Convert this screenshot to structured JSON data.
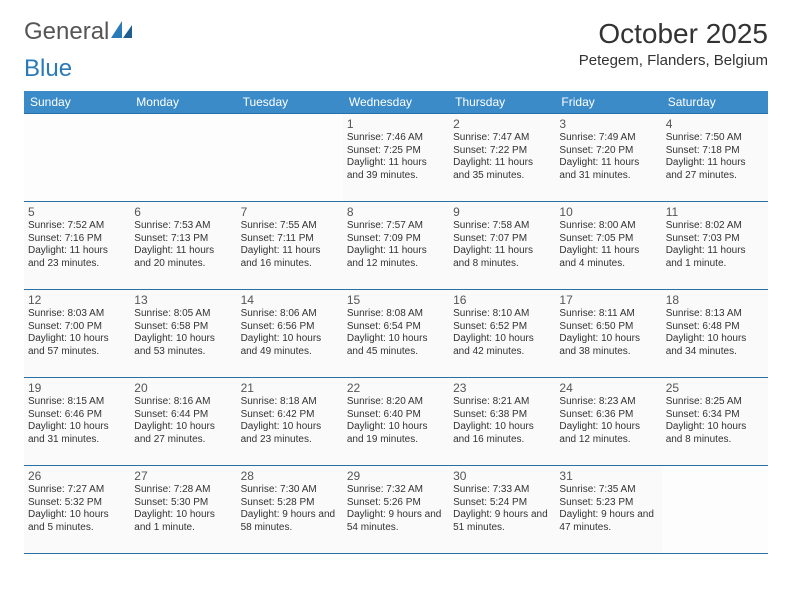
{
  "brand": {
    "part1": "General",
    "part2": "Blue"
  },
  "title": "October 2025",
  "location": "Petegem, Flanders, Belgium",
  "colors": {
    "header_bg": "#3b8bc9",
    "header_text": "#ffffff",
    "rule": "#2a6fa3",
    "brand_gray": "#555555",
    "brand_blue": "#2a7ab8"
  },
  "dayHeaders": [
    "Sunday",
    "Monday",
    "Tuesday",
    "Wednesday",
    "Thursday",
    "Friday",
    "Saturday"
  ],
  "weeks": [
    [
      null,
      null,
      null,
      {
        "n": "1",
        "sr": "Sunrise: 7:46 AM",
        "ss": "Sunset: 7:25 PM",
        "dl": "Daylight: 11 hours and 39 minutes."
      },
      {
        "n": "2",
        "sr": "Sunrise: 7:47 AM",
        "ss": "Sunset: 7:22 PM",
        "dl": "Daylight: 11 hours and 35 minutes."
      },
      {
        "n": "3",
        "sr": "Sunrise: 7:49 AM",
        "ss": "Sunset: 7:20 PM",
        "dl": "Daylight: 11 hours and 31 minutes."
      },
      {
        "n": "4",
        "sr": "Sunrise: 7:50 AM",
        "ss": "Sunset: 7:18 PM",
        "dl": "Daylight: 11 hours and 27 minutes."
      }
    ],
    [
      {
        "n": "5",
        "sr": "Sunrise: 7:52 AM",
        "ss": "Sunset: 7:16 PM",
        "dl": "Daylight: 11 hours and 23 minutes."
      },
      {
        "n": "6",
        "sr": "Sunrise: 7:53 AM",
        "ss": "Sunset: 7:13 PM",
        "dl": "Daylight: 11 hours and 20 minutes."
      },
      {
        "n": "7",
        "sr": "Sunrise: 7:55 AM",
        "ss": "Sunset: 7:11 PM",
        "dl": "Daylight: 11 hours and 16 minutes."
      },
      {
        "n": "8",
        "sr": "Sunrise: 7:57 AM",
        "ss": "Sunset: 7:09 PM",
        "dl": "Daylight: 11 hours and 12 minutes."
      },
      {
        "n": "9",
        "sr": "Sunrise: 7:58 AM",
        "ss": "Sunset: 7:07 PM",
        "dl": "Daylight: 11 hours and 8 minutes."
      },
      {
        "n": "10",
        "sr": "Sunrise: 8:00 AM",
        "ss": "Sunset: 7:05 PM",
        "dl": "Daylight: 11 hours and 4 minutes."
      },
      {
        "n": "11",
        "sr": "Sunrise: 8:02 AM",
        "ss": "Sunset: 7:03 PM",
        "dl": "Daylight: 11 hours and 1 minute."
      }
    ],
    [
      {
        "n": "12",
        "sr": "Sunrise: 8:03 AM",
        "ss": "Sunset: 7:00 PM",
        "dl": "Daylight: 10 hours and 57 minutes."
      },
      {
        "n": "13",
        "sr": "Sunrise: 8:05 AM",
        "ss": "Sunset: 6:58 PM",
        "dl": "Daylight: 10 hours and 53 minutes."
      },
      {
        "n": "14",
        "sr": "Sunrise: 8:06 AM",
        "ss": "Sunset: 6:56 PM",
        "dl": "Daylight: 10 hours and 49 minutes."
      },
      {
        "n": "15",
        "sr": "Sunrise: 8:08 AM",
        "ss": "Sunset: 6:54 PM",
        "dl": "Daylight: 10 hours and 45 minutes."
      },
      {
        "n": "16",
        "sr": "Sunrise: 8:10 AM",
        "ss": "Sunset: 6:52 PM",
        "dl": "Daylight: 10 hours and 42 minutes."
      },
      {
        "n": "17",
        "sr": "Sunrise: 8:11 AM",
        "ss": "Sunset: 6:50 PM",
        "dl": "Daylight: 10 hours and 38 minutes."
      },
      {
        "n": "18",
        "sr": "Sunrise: 8:13 AM",
        "ss": "Sunset: 6:48 PM",
        "dl": "Daylight: 10 hours and 34 minutes."
      }
    ],
    [
      {
        "n": "19",
        "sr": "Sunrise: 8:15 AM",
        "ss": "Sunset: 6:46 PM",
        "dl": "Daylight: 10 hours and 31 minutes."
      },
      {
        "n": "20",
        "sr": "Sunrise: 8:16 AM",
        "ss": "Sunset: 6:44 PM",
        "dl": "Daylight: 10 hours and 27 minutes."
      },
      {
        "n": "21",
        "sr": "Sunrise: 8:18 AM",
        "ss": "Sunset: 6:42 PM",
        "dl": "Daylight: 10 hours and 23 minutes."
      },
      {
        "n": "22",
        "sr": "Sunrise: 8:20 AM",
        "ss": "Sunset: 6:40 PM",
        "dl": "Daylight: 10 hours and 19 minutes."
      },
      {
        "n": "23",
        "sr": "Sunrise: 8:21 AM",
        "ss": "Sunset: 6:38 PM",
        "dl": "Daylight: 10 hours and 16 minutes."
      },
      {
        "n": "24",
        "sr": "Sunrise: 8:23 AM",
        "ss": "Sunset: 6:36 PM",
        "dl": "Daylight: 10 hours and 12 minutes."
      },
      {
        "n": "25",
        "sr": "Sunrise: 8:25 AM",
        "ss": "Sunset: 6:34 PM",
        "dl": "Daylight: 10 hours and 8 minutes."
      }
    ],
    [
      {
        "n": "26",
        "sr": "Sunrise: 7:27 AM",
        "ss": "Sunset: 5:32 PM",
        "dl": "Daylight: 10 hours and 5 minutes."
      },
      {
        "n": "27",
        "sr": "Sunrise: 7:28 AM",
        "ss": "Sunset: 5:30 PM",
        "dl": "Daylight: 10 hours and 1 minute."
      },
      {
        "n": "28",
        "sr": "Sunrise: 7:30 AM",
        "ss": "Sunset: 5:28 PM",
        "dl": "Daylight: 9 hours and 58 minutes."
      },
      {
        "n": "29",
        "sr": "Sunrise: 7:32 AM",
        "ss": "Sunset: 5:26 PM",
        "dl": "Daylight: 9 hours and 54 minutes."
      },
      {
        "n": "30",
        "sr": "Sunrise: 7:33 AM",
        "ss": "Sunset: 5:24 PM",
        "dl": "Daylight: 9 hours and 51 minutes."
      },
      {
        "n": "31",
        "sr": "Sunrise: 7:35 AM",
        "ss": "Sunset: 5:23 PM",
        "dl": "Daylight: 9 hours and 47 minutes."
      },
      null
    ]
  ]
}
